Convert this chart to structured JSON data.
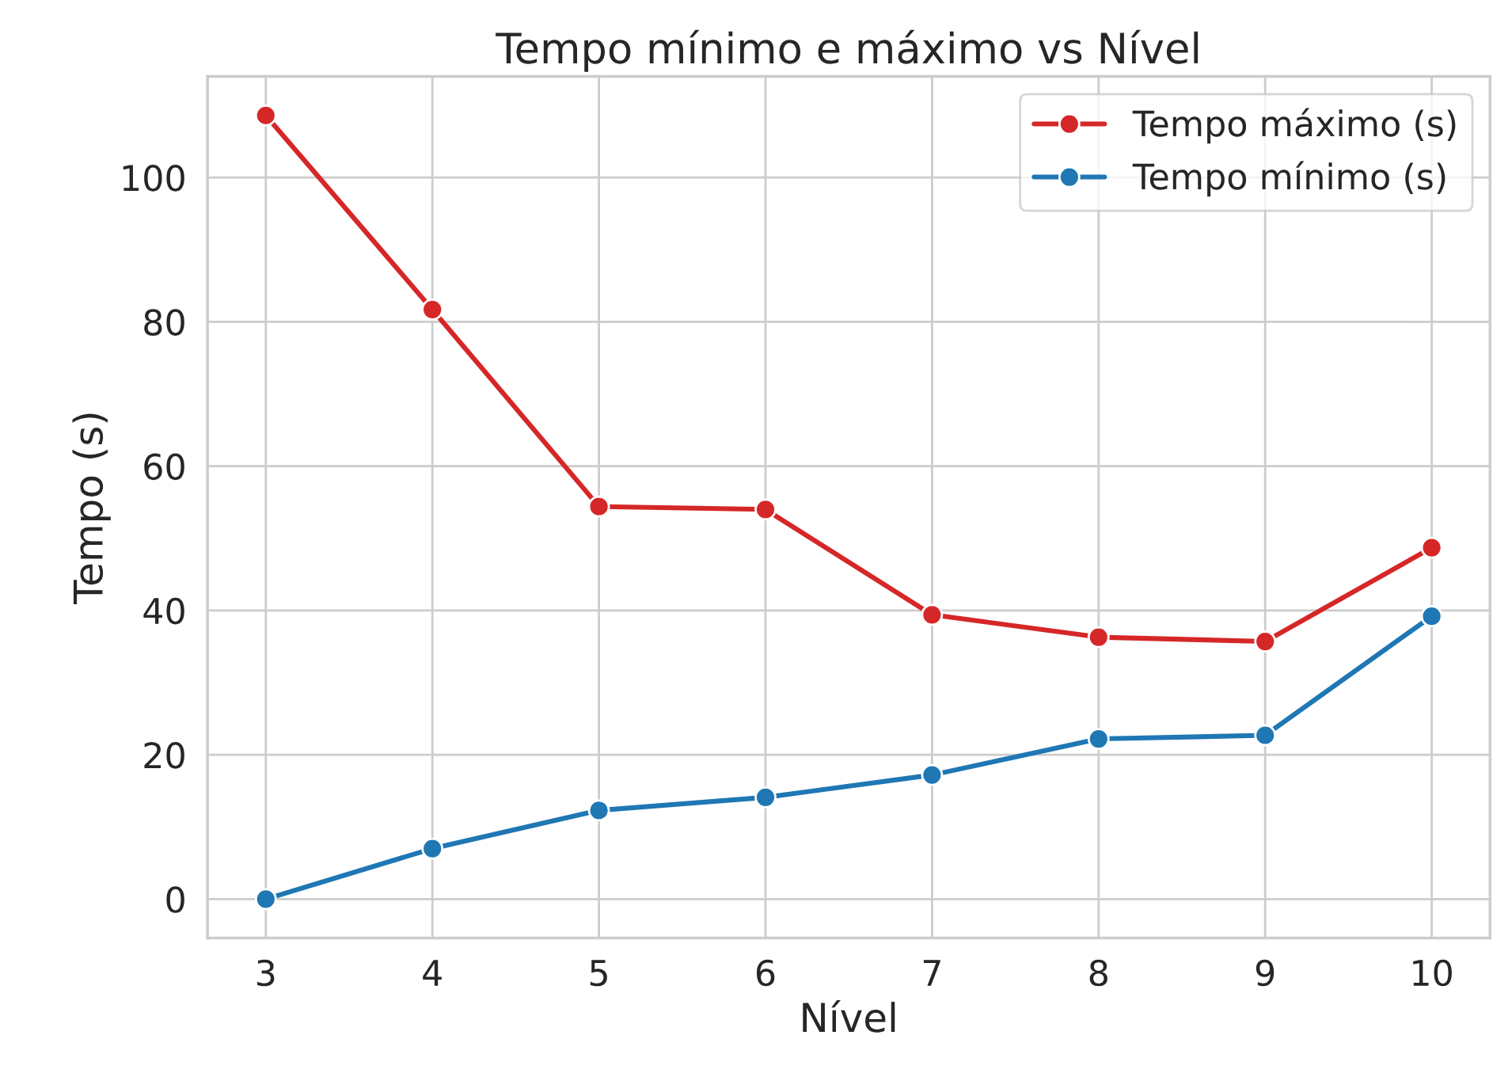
{
  "chart_data": {
    "type": "line",
    "title": "Tempo mínimo e máximo vs Nível",
    "xlabel": "Nível",
    "ylabel": "Tempo (s)",
    "x": [
      3,
      4,
      5,
      6,
      7,
      8,
      9,
      10
    ],
    "series": [
      {
        "name": "Tempo máximo (s)",
        "color": "#d62728",
        "values": [
          108.6,
          81.7,
          54.4,
          54.0,
          39.4,
          36.3,
          35.7,
          48.7
        ]
      },
      {
        "name": "Tempo mínimo (s)",
        "color": "#1f77b4",
        "values": [
          0.0,
          7.0,
          12.3,
          14.1,
          17.2,
          22.2,
          22.7,
          39.2
        ]
      }
    ],
    "xlim": [
      2.65,
      10.35
    ],
    "ylim": [
      -5.4,
      114.0
    ],
    "xticks": [
      3,
      4,
      5,
      6,
      7,
      8,
      9,
      10
    ],
    "yticks": [
      0,
      20,
      40,
      60,
      80,
      100
    ],
    "grid": true,
    "legend": "top right",
    "marker": "circle",
    "line_style": "solid"
  }
}
